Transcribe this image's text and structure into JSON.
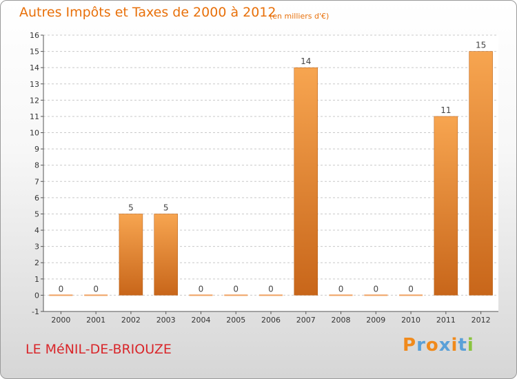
{
  "header": {
    "title": "Autres Impôts et Taxes de 2000 à 2012",
    "unit": "(en milliers d'€)"
  },
  "footer": {
    "place": "LE MéNIL-DE-BRIOUZE",
    "brand": "Proxiti"
  },
  "colors": {
    "title": "#e8700a",
    "place": "#d9262a",
    "bar_top": "#f7a550",
    "bar_bottom": "#c8661a",
    "brand_letters": [
      "#f08a1c",
      "#5aa0d8",
      "#f08a1c",
      "#5aa0d8",
      "#f08a1c",
      "#5aa0d8",
      "#8ac43f"
    ]
  },
  "chart_data": {
    "type": "bar",
    "categories": [
      "2000",
      "2001",
      "2002",
      "2003",
      "2004",
      "2005",
      "2006",
      "2007",
      "2008",
      "2009",
      "2010",
      "2011",
      "2012"
    ],
    "values": [
      0,
      0,
      5,
      5,
      0,
      0,
      0,
      14,
      0,
      0,
      0,
      11,
      15
    ],
    "ylim": [
      -1,
      16
    ],
    "yticks": [
      -1,
      0,
      1,
      2,
      3,
      4,
      5,
      6,
      7,
      8,
      9,
      10,
      11,
      12,
      13,
      14,
      15,
      16
    ],
    "grid": "horizontal dashed"
  }
}
